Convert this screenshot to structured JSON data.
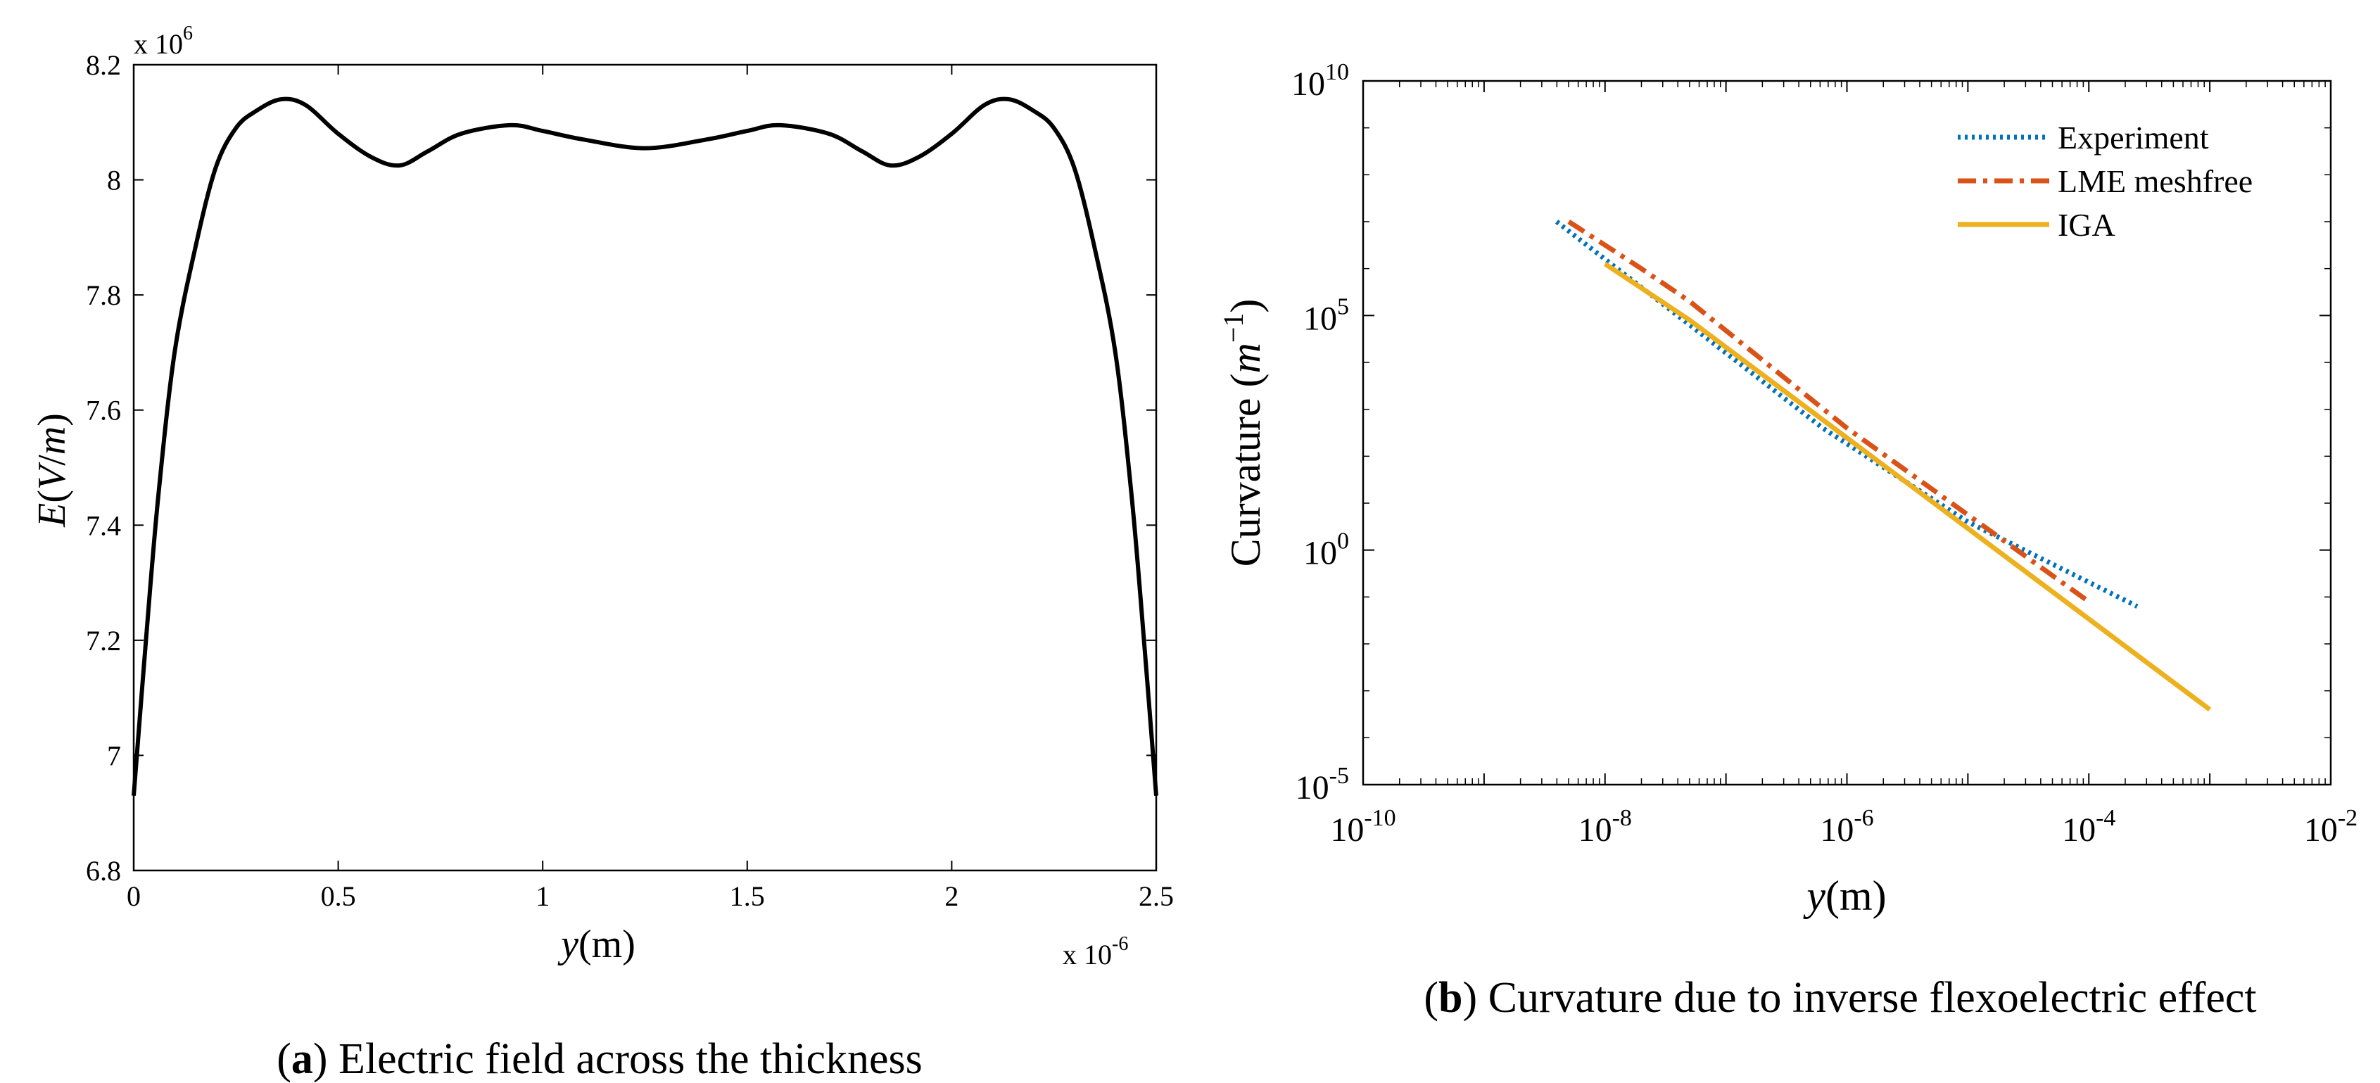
{
  "chart_data": [
    {
      "id": "a",
      "type": "line",
      "caption_letter": "a",
      "caption_text": " Electric field across the thickness",
      "xlabel_var": "y",
      "xlabel_rest": "(m)",
      "ylabel_var1": "E",
      "ylabel_rest1": "(",
      "ylabel_var2": "V",
      "ylabel_rest2": "/",
      "ylabel_var3": "m",
      "ylabel_rest3": ")",
      "x_multiplier": "x 10",
      "x_multiplier_exp": "-6",
      "y_multiplier": "x 10",
      "y_multiplier_exp": "6",
      "xlim": [
        0,
        2.5
      ],
      "ylim": [
        6.8,
        8.2
      ],
      "xticks": [
        0,
        0.5,
        1,
        1.5,
        2,
        2.5
      ],
      "xtick_labels": [
        "0",
        "0.5",
        "1",
        "1.5",
        "2",
        "2.5"
      ],
      "yticks": [
        6.8,
        7.0,
        7.2,
        7.4,
        7.6,
        7.8,
        8.0,
        8.2
      ],
      "ytick_labels": [
        "6.8",
        "7",
        "7.2",
        "7.4",
        "7.6",
        "7.8",
        "8",
        "8.2"
      ],
      "series": [
        {
          "name": "E",
          "color": "#000000",
          "x": [
            0,
            0.03,
            0.06,
            0.1,
            0.15,
            0.2,
            0.25,
            0.3,
            0.36,
            0.42,
            0.5,
            0.58,
            0.65,
            0.72,
            0.8,
            0.92,
            1.0,
            1.1,
            1.25,
            1.4,
            1.5,
            1.58,
            1.7,
            1.78,
            1.85,
            1.92,
            2.0,
            2.08,
            2.14,
            2.2,
            2.25,
            2.3,
            2.35,
            2.4,
            2.44,
            2.47,
            2.5
          ],
          "y": [
            6.93,
            7.2,
            7.45,
            7.7,
            7.88,
            8.02,
            8.09,
            8.12,
            8.14,
            8.13,
            8.08,
            8.04,
            8.025,
            8.05,
            8.08,
            8.095,
            8.085,
            8.07,
            8.055,
            8.07,
            8.085,
            8.095,
            8.08,
            8.05,
            8.025,
            8.04,
            8.08,
            8.13,
            8.14,
            8.12,
            8.09,
            8.02,
            7.88,
            7.7,
            7.45,
            7.2,
            6.93
          ]
        }
      ]
    },
    {
      "id": "b",
      "type": "line",
      "scale": "log-log",
      "caption_letter": "b",
      "caption_text": " Curvature due to inverse flexoelectric effect",
      "xlabel_var": "y",
      "xlabel_rest": "(m)",
      "ylabel_text": "Curvature (",
      "ylabel_var": "m",
      "ylabel_exp": "−1",
      "ylabel_close": ")",
      "xlim_log10": [
        -10,
        -2
      ],
      "ylim_log10": [
        -5,
        10
      ],
      "xtick_exponents": [
        "-10",
        "-8",
        "-6",
        "-4",
        "-2"
      ],
      "xtick_log10": [
        -10,
        -8,
        -6,
        -4,
        -2
      ],
      "ytick_exponents": [
        "-5",
        "0",
        "5",
        "10"
      ],
      "ytick_log10": [
        -5,
        0,
        5,
        10
      ],
      "tick_base": "10",
      "legend_position": "top-right",
      "series": [
        {
          "name": "Experiment",
          "color": "#0072BD",
          "style": "dotted",
          "log10_x": [
            -8.4,
            -7.3,
            -6.2,
            -5.0,
            -3.6
          ],
          "log10_y": [
            7.0,
            4.8,
            2.6,
            0.6,
            -1.2
          ]
        },
        {
          "name": "LME meshfree",
          "color": "#D95319",
          "style": "dashdot",
          "log10_x": [
            -8.3,
            -7.7,
            -7.3,
            -6.0,
            -4.0
          ],
          "log10_y": [
            7.0,
            6.0,
            5.3,
            2.6,
            -1.1
          ]
        },
        {
          "name": "IGA",
          "color": "#EDB120",
          "style": "solid",
          "log10_x": [
            -8.0,
            -7.3,
            -3.0
          ],
          "log10_y": [
            6.1,
            4.9,
            -3.4
          ]
        }
      ]
    }
  ]
}
